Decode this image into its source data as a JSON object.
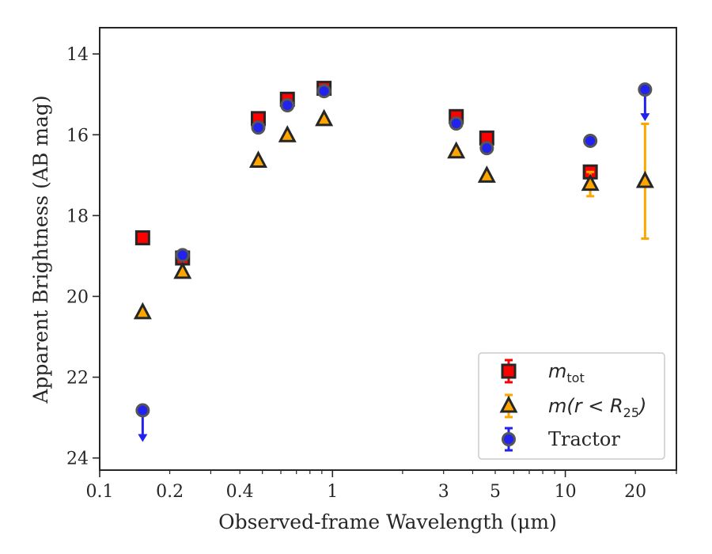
{
  "chart_data": {
    "type": "scatter",
    "xlabel": "Observed-frame Wavelength (μm)",
    "ylabel": "Apparent Brightness (AB mag)",
    "xscale": "log",
    "xlim": [
      0.1,
      30
    ],
    "ylim": [
      24.3,
      13.35
    ],
    "y_inverted": true,
    "grid": false,
    "legend_position": "lower-right",
    "xticks": [
      0.1,
      0.2,
      0.4,
      1,
      3,
      5,
      10,
      20
    ],
    "xtick_labels": [
      "0.1",
      "0.2",
      "0.4",
      "1",
      "3",
      "5",
      "10",
      "20"
    ],
    "yticks": [
      14,
      16,
      18,
      20,
      22,
      24
    ],
    "ytick_labels": [
      "14",
      "16",
      "18",
      "20",
      "22",
      "24"
    ],
    "series": [
      {
        "name": "m_tot",
        "legend_main": "m",
        "legend_sub": "tot",
        "marker": "square",
        "color": "#ff0000",
        "edge": "#262626",
        "points": [
          {
            "x": 0.153,
            "y": 18.55
          },
          {
            "x": 0.227,
            "y": 19.05
          },
          {
            "x": 0.48,
            "y": 15.6
          },
          {
            "x": 0.64,
            "y": 15.12
          },
          {
            "x": 0.92,
            "y": 14.85
          },
          {
            "x": 3.4,
            "y": 15.55
          },
          {
            "x": 4.6,
            "y": 16.08
          },
          {
            "x": 12.8,
            "y": 16.92
          }
        ]
      },
      {
        "name": "m(r < R25)",
        "legend_main": "m(r < R",
        "legend_sub": "25",
        "legend_tail": ")",
        "marker": "triangle",
        "color": "#ffa500",
        "edge": "#262626",
        "points": [
          {
            "x": 0.153,
            "y": 20.4
          },
          {
            "x": 0.227,
            "y": 19.4
          },
          {
            "x": 0.48,
            "y": 16.65
          },
          {
            "x": 0.64,
            "y": 16.02
          },
          {
            "x": 0.92,
            "y": 15.62
          },
          {
            "x": 3.4,
            "y": 16.42
          },
          {
            "x": 4.6,
            "y": 17.02
          },
          {
            "x": 12.8,
            "y": 17.22,
            "err": 0.3
          },
          {
            "x": 22.0,
            "y": 17.15,
            "err": 1.42
          }
        ]
      },
      {
        "name": "Tractor",
        "marker": "circle",
        "color": "#2222ee",
        "edge": "#555555",
        "points": [
          {
            "x": 0.153,
            "y": 22.82,
            "upper_limit": true
          },
          {
            "x": 0.227,
            "y": 18.98
          },
          {
            "x": 0.48,
            "y": 15.82
          },
          {
            "x": 0.64,
            "y": 15.27
          },
          {
            "x": 0.92,
            "y": 14.92
          },
          {
            "x": 3.4,
            "y": 15.72
          },
          {
            "x": 4.6,
            "y": 16.33
          },
          {
            "x": 12.8,
            "y": 16.15
          },
          {
            "x": 22.0,
            "y": 14.88,
            "upper_limit": true
          }
        ]
      }
    ]
  }
}
